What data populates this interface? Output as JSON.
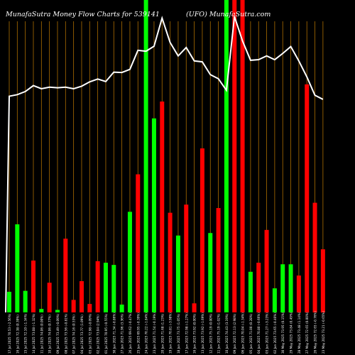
{
  "chart_data": {
    "type": "bar",
    "title": "MunafaSutra  Money Flow  Charts for 539141",
    "subtitle": "(UFO) MunafaSutra.com",
    "colors": {
      "background": "#000000",
      "up_bar": "#00ff00",
      "down_bar": "#ff0000",
      "price_line": "#ffffff",
      "gridline": "#ad6e00"
    },
    "ylim": [
      0,
      100
    ],
    "bars": [
      {
        "label": "17 Jul 2025 70.53 (-2.56%)",
        "value": 6.6,
        "direction": "up"
      },
      {
        "label": "16 Jul 2025 72.38 (0.39%)",
        "value": 28.2,
        "direction": "up"
      },
      {
        "label": "15 Jul 2025 72.10 (-1.34%)",
        "value": 6.9,
        "direction": "up"
      },
      {
        "label": "14 Jul 2025 73.08 (-1.32%)",
        "value": 16.6,
        "direction": "down"
      },
      {
        "label": "11 Jul 2025 74.06 (0.00%)",
        "value": 1.1,
        "direction": "up"
      },
      {
        "label": "10 Jul 2025 74.06 (0.77%)",
        "value": 9.5,
        "direction": "down"
      },
      {
        "label": "09 Jul 2025 73.49 (-0.09%)",
        "value": 0.8,
        "direction": "up"
      },
      {
        "label": "08 Jul 2025 73.56 (-0.81%)",
        "value": 23.6,
        "direction": "down"
      },
      {
        "label": "07 Jul 2025 74.16 (0.53%)",
        "value": 4.0,
        "direction": "down"
      },
      {
        "label": "04 Jul 2025 73.77 (1.09%)",
        "value": 10.0,
        "direction": "down"
      },
      {
        "label": "03 Jul 2025 72.98 (-0.09%)",
        "value": 2.7,
        "direction": "down"
      },
      {
        "label": "02 Jul 2025 73.04 (2.94%)",
        "value": 16.4,
        "direction": "down"
      },
      {
        "label": "01 Jul 2025 70.95 (-0.55%)",
        "value": 15.9,
        "direction": "up"
      },
      {
        "label": "30 Jun 2025 71.34 (-0.86%)",
        "value": 15.2,
        "direction": "up"
      },
      {
        "label": "27 Jun 2025 71.96 (3.36%)",
        "value": 2.5,
        "direction": "up"
      },
      {
        "label": "26 Jun 2025 69.62 (-0.47%)",
        "value": 32.2,
        "direction": "up"
      },
      {
        "label": "25 Jun 2025 69.95 (-0.39%)",
        "value": 44.2,
        "direction": "down"
      },
      {
        "label": "24 Jun 2025 70.22 (-1.84%)",
        "value": 100,
        "direction": "up"
      },
      {
        "label": "23 Jun 2025 71.54 (-0.19%)",
        "value": 62.1,
        "direction": "up"
      },
      {
        "label": "20 Jun 2025 71.68 (1.23%)",
        "value": 67.5,
        "direction": "down"
      },
      {
        "label": "19 Jun 2025 70.81 (-3.98%)",
        "value": 31.9,
        "direction": "down"
      },
      {
        "label": "18 Jun 2025 73.75 (1.05%)",
        "value": 24.6,
        "direction": "up"
      },
      {
        "label": "17 Jun 2025 72.98 (-1.27%)",
        "value": 34.5,
        "direction": "down"
      },
      {
        "label": "16 Jun 2025 73.92 (0.00%)",
        "value": 2.9,
        "direction": "down"
      },
      {
        "label": "13 Jun 2025 73.92 (-1.69%)",
        "value": 52.5,
        "direction": "down"
      },
      {
        "label": "12 Jun 2025 75.19 (0.00%)",
        "value": 25.4,
        "direction": "up"
      },
      {
        "label": "11 Jun 2025 75.19 (1.02%)",
        "value": 33.4,
        "direction": "down"
      },
      {
        "label": "10 Jun 2025 74.43 (3.19%)",
        "value": 100,
        "direction": "up"
      },
      {
        "label": "09 Jun 2025 72.13 (2.98%)",
        "value": 100,
        "direction": "down"
      },
      {
        "label": "06 Jun 2025 70.04 (-1.34%)",
        "value": 100,
        "direction": "down"
      },
      {
        "label": "05 Jun 2025 71.00 (0.28%)",
        "value": 13.0,
        "direction": "up"
      },
      {
        "label": "04 Jun 2025 70.80 (-0.66%)",
        "value": 15.9,
        "direction": "down"
      },
      {
        "label": "03 Jun 2025 71.27 (-3.23%)",
        "value": 26.4,
        "direction": "down"
      },
      {
        "label": "02 Jun 2025 73.65 (-0.40%)",
        "value": 7.7,
        "direction": "up"
      },
      {
        "label": "30 May 2025 73.95 (0.15%)",
        "value": 15.4,
        "direction": "up"
      },
      {
        "label": "29 May 2025 73.84 (0.49%)",
        "value": 15.4,
        "direction": "up"
      },
      {
        "label": "28 May 2025 73.48 (1.14%)",
        "value": 11.8,
        "direction": "down"
      },
      {
        "label": "27 May 2025 72.65 (0.00%)",
        "value": 73.0,
        "direction": "down"
      },
      {
        "label": "26 May 2025 72.65 (-0.76%)",
        "value": 35.1,
        "direction": "down"
      },
      {
        "label": "23 May 2025 73.21 (-0.65%)",
        "value": 20.2,
        "direction": "down"
      }
    ],
    "line_values": [
      69.2,
      69.7,
      70.7,
      72.6,
      71.6,
      72.1,
      71.9,
      72.1,
      71.6,
      72.4,
      73.8,
      74.7,
      73.9,
      76.9,
      76.8,
      77.8,
      83.9,
      83.6,
      85.2,
      94.2,
      86.4,
      82.1,
      84.8,
      80.5,
      80.2,
      76.1,
      74.8,
      71.1,
      94.7,
      86.9,
      80.7,
      80.9,
      82.1,
      80.9,
      82.9,
      85.1,
      80.5,
      75.4,
      69.5,
      68.2
    ]
  }
}
